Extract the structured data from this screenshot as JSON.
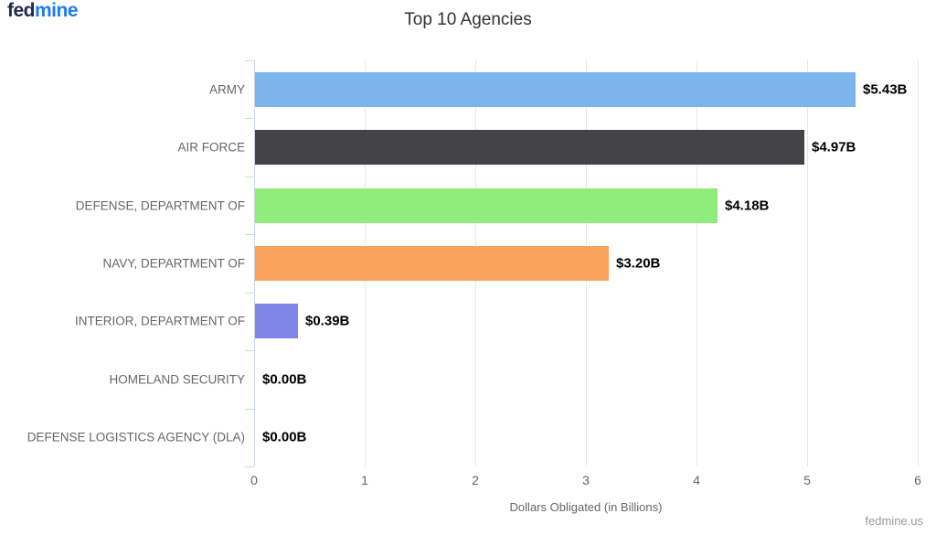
{
  "logo": {
    "part1": "fed",
    "part2": "mine"
  },
  "footer": {
    "watermark": "fedmine.us"
  },
  "chart_data": {
    "type": "bar",
    "title": "Top 10 Agencies",
    "xlabel": "Dollars Obligated (in Billions)",
    "ylabel": "",
    "xlim": [
      0,
      6
    ],
    "xticks": [
      0,
      1,
      2,
      3,
      4,
      5,
      6
    ],
    "grid": true,
    "legend": false,
    "categories": [
      "ARMY",
      "AIR FORCE",
      "DEFENSE, DEPARTMENT OF",
      "NAVY, DEPARTMENT OF",
      "INTERIOR, DEPARTMENT OF",
      "HOMELAND SECURITY",
      "DEFENSE LOGISTICS AGENCY (DLA)"
    ],
    "values": [
      5.43,
      4.97,
      4.18,
      3.2,
      0.39,
      0.0,
      0.0
    ],
    "value_labels": [
      "$5.43B",
      "$4.97B",
      "$4.18B",
      "$3.20B",
      "$0.39B",
      "$0.00B",
      "$0.00B"
    ],
    "bar_colors": [
      "#7cb5ec",
      "#434348",
      "#90ed7d",
      "#f7a35c",
      "#8085e9",
      null,
      null
    ]
  },
  "colors": {
    "logo_fed": "#252850",
    "logo_mine": "#1c7df2",
    "title_text": "#333333",
    "category_label": "#666666",
    "value_label": "#000000",
    "axis_line": "#ccd6eb",
    "gridline": "#e6e6e6",
    "tick_label": "#666666",
    "axis_title": "#666666",
    "watermark": "#999999"
  }
}
